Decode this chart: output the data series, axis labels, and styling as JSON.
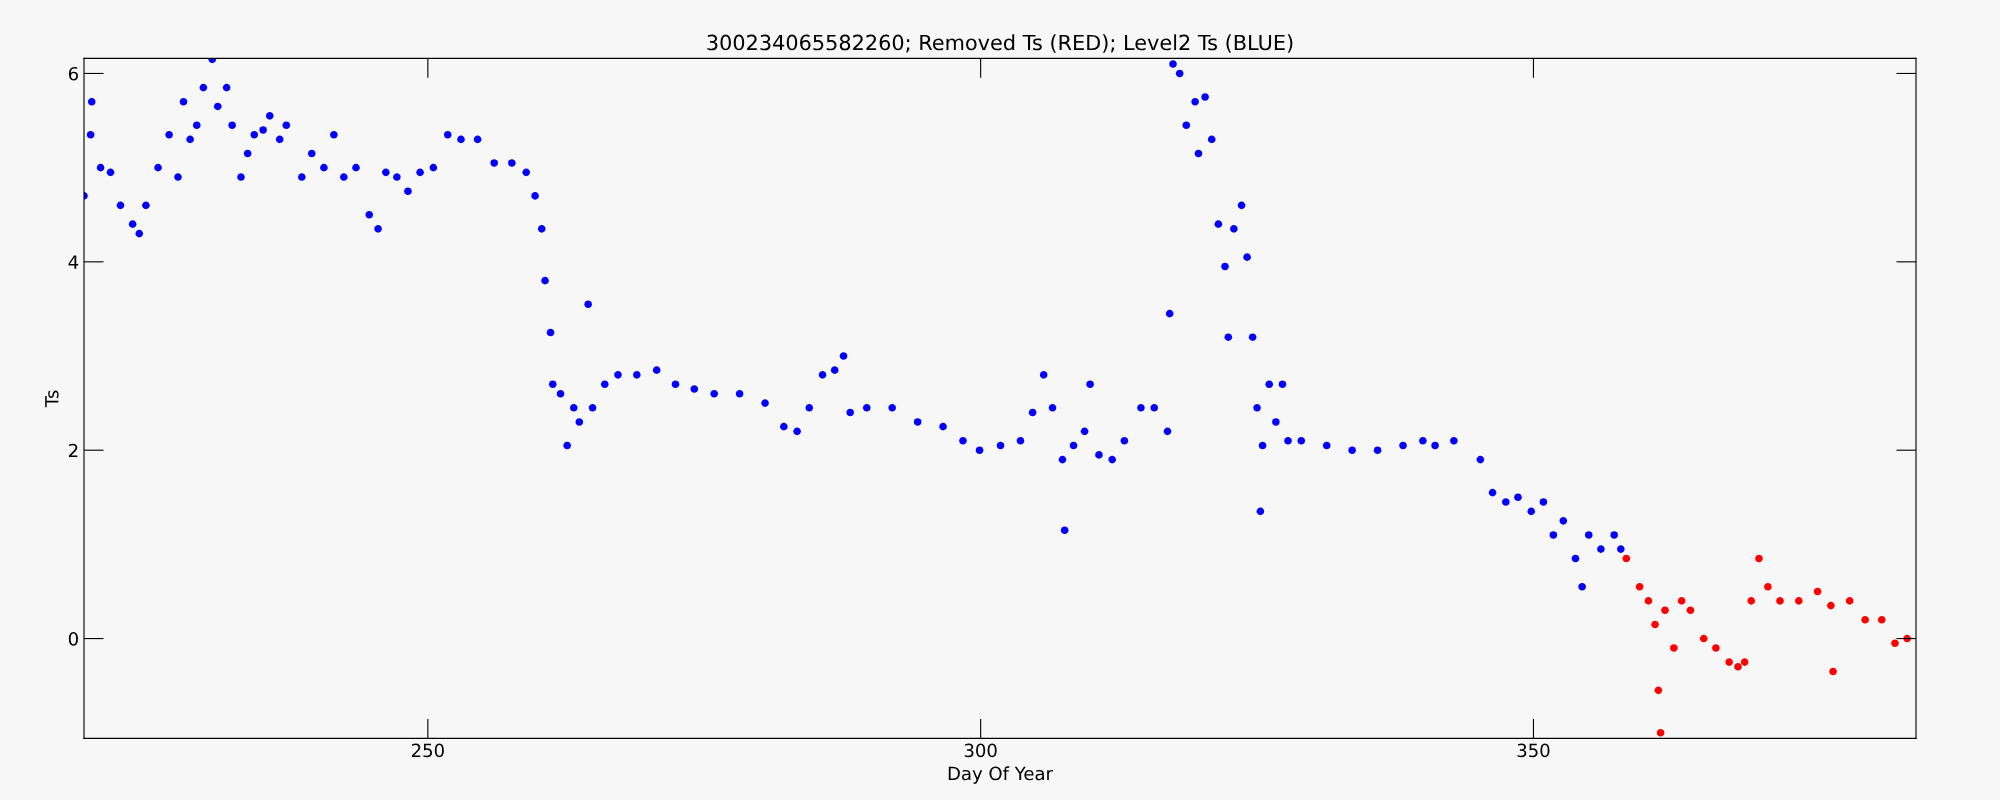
{
  "chart_data": {
    "type": "scatter",
    "title": "300234065582260; Removed Ts (RED); Level2 Ts (BLUE)",
    "xlabel": "Day Of Year",
    "ylabel": "Ts",
    "xlim": [
      218.9,
      384.6
    ],
    "ylim": [
      -1.06,
      6.16
    ],
    "xticks": [
      250,
      300,
      350
    ],
    "yticks": [
      0,
      2,
      4,
      6
    ],
    "grid": false,
    "legend": false,
    "marker": "circle",
    "series": [
      {
        "color": "#0000ff",
        "x": [
          218.9,
          219.5,
          219.6,
          220.4,
          221.3,
          222.2,
          223.3,
          223.9,
          224.5,
          225.6,
          226.6,
          227.4,
          227.9,
          228.5,
          229.1,
          229.7,
          230.5,
          231.0,
          231.8,
          232.3,
          233.1,
          233.7,
          234.3,
          235.1,
          235.7,
          236.6,
          237.2,
          238.6,
          239.5,
          240.6,
          241.5,
          242.4,
          243.5,
          244.7,
          245.5,
          246.2,
          247.2,
          248.2,
          249.3,
          250.5,
          251.8,
          253.0,
          254.5,
          256.0,
          257.6,
          258.9,
          259.7,
          260.3,
          260.6,
          261.1,
          261.3,
          262.0,
          262.6,
          263.2,
          263.7,
          264.5,
          264.9,
          266.0,
          267.2,
          268.9,
          270.7,
          272.4,
          274.1,
          275.9,
          278.2,
          280.5,
          282.2,
          283.4,
          284.5,
          285.7,
          286.8,
          287.6,
          288.2,
          289.7,
          292.0,
          294.3,
          296.6,
          298.4,
          299.9,
          301.8,
          303.6,
          304.7,
          305.7,
          306.5,
          307.4,
          307.6,
          308.4,
          309.4,
          309.9,
          310.7,
          311.9,
          313.0,
          314.5,
          315.7,
          316.9,
          317.1,
          317.4,
          318.0,
          318.6,
          319.4,
          319.7,
          320.3,
          320.9,
          321.5,
          322.1,
          322.4,
          322.9,
          323.6,
          324.1,
          324.6,
          325.0,
          325.3,
          325.5,
          326.1,
          326.7,
          327.3,
          327.8,
          329.0,
          331.3,
          333.6,
          335.9,
          338.2,
          340.0,
          341.1,
          342.8,
          345.2,
          346.3,
          347.5,
          348.6,
          349.8,
          350.9,
          351.8,
          352.7,
          353.8,
          354.4,
          355.0,
          356.1,
          357.3,
          357.9
        ],
        "values": [
          4.7,
          5.35,
          5.7,
          5.0,
          4.95,
          4.6,
          4.4,
          4.3,
          4.6,
          5.0,
          5.35,
          4.9,
          5.7,
          5.3,
          5.45,
          5.85,
          6.15,
          5.65,
          5.85,
          5.45,
          4.9,
          5.15,
          5.35,
          5.4,
          5.55,
          5.3,
          5.45,
          4.9,
          5.15,
          5.0,
          5.35,
          4.9,
          5.0,
          4.5,
          4.35,
          4.95,
          4.9,
          4.75,
          4.95,
          5.0,
          5.35,
          5.3,
          5.3,
          5.05,
          5.05,
          4.95,
          4.7,
          4.35,
          3.8,
          3.25,
          2.7,
          2.6,
          2.05,
          2.45,
          2.3,
          3.55,
          2.45,
          2.7,
          2.8,
          2.8,
          2.85,
          2.7,
          2.65,
          2.6,
          2.6,
          2.5,
          2.25,
          2.2,
          2.45,
          2.8,
          2.85,
          3.0,
          2.4,
          2.45,
          2.45,
          2.3,
          2.25,
          2.1,
          2.0,
          2.05,
          2.1,
          2.4,
          2.8,
          2.45,
          1.9,
          1.15,
          2.05,
          2.2,
          2.7,
          1.95,
          1.9,
          2.1,
          2.45,
          2.45,
          2.2,
          3.45,
          6.1,
          6.0,
          5.45,
          5.7,
          5.15,
          5.75,
          5.3,
          4.4,
          3.95,
          3.2,
          4.35,
          4.6,
          4.05,
          3.2,
          2.45,
          1.35,
          2.05,
          2.7,
          2.3,
          2.7,
          2.1,
          2.1,
          2.05,
          2.0,
          2.0,
          2.05,
          2.1,
          2.05,
          2.1,
          1.9,
          1.55,
          1.45,
          1.5,
          1.35,
          1.45,
          1.1,
          1.25,
          0.85,
          0.55,
          1.1,
          0.95,
          1.1,
          0.95
        ]
      },
      {
        "color": "#ff0000",
        "x": [
          358.4,
          359.6,
          360.4,
          361.0,
          361.3,
          361.5,
          361.9,
          362.7,
          363.4,
          364.2,
          365.4,
          366.5,
          367.7,
          368.5,
          369.1,
          369.7,
          370.4,
          371.2,
          372.3,
          374.0,
          375.7,
          376.9,
          377.1,
          378.6,
          380.0,
          381.5,
          382.7,
          383.8
        ],
        "values": [
          0.85,
          0.55,
          0.4,
          0.15,
          -0.55,
          -1.0,
          0.3,
          -0.1,
          0.4,
          0.3,
          0.0,
          -0.1,
          -0.25,
          -0.3,
          -0.25,
          0.4,
          0.85,
          0.55,
          0.4,
          0.4,
          0.5,
          0.35,
          -0.35,
          0.4,
          0.2,
          0.2,
          -0.05,
          0.0
        ]
      }
    ]
  }
}
